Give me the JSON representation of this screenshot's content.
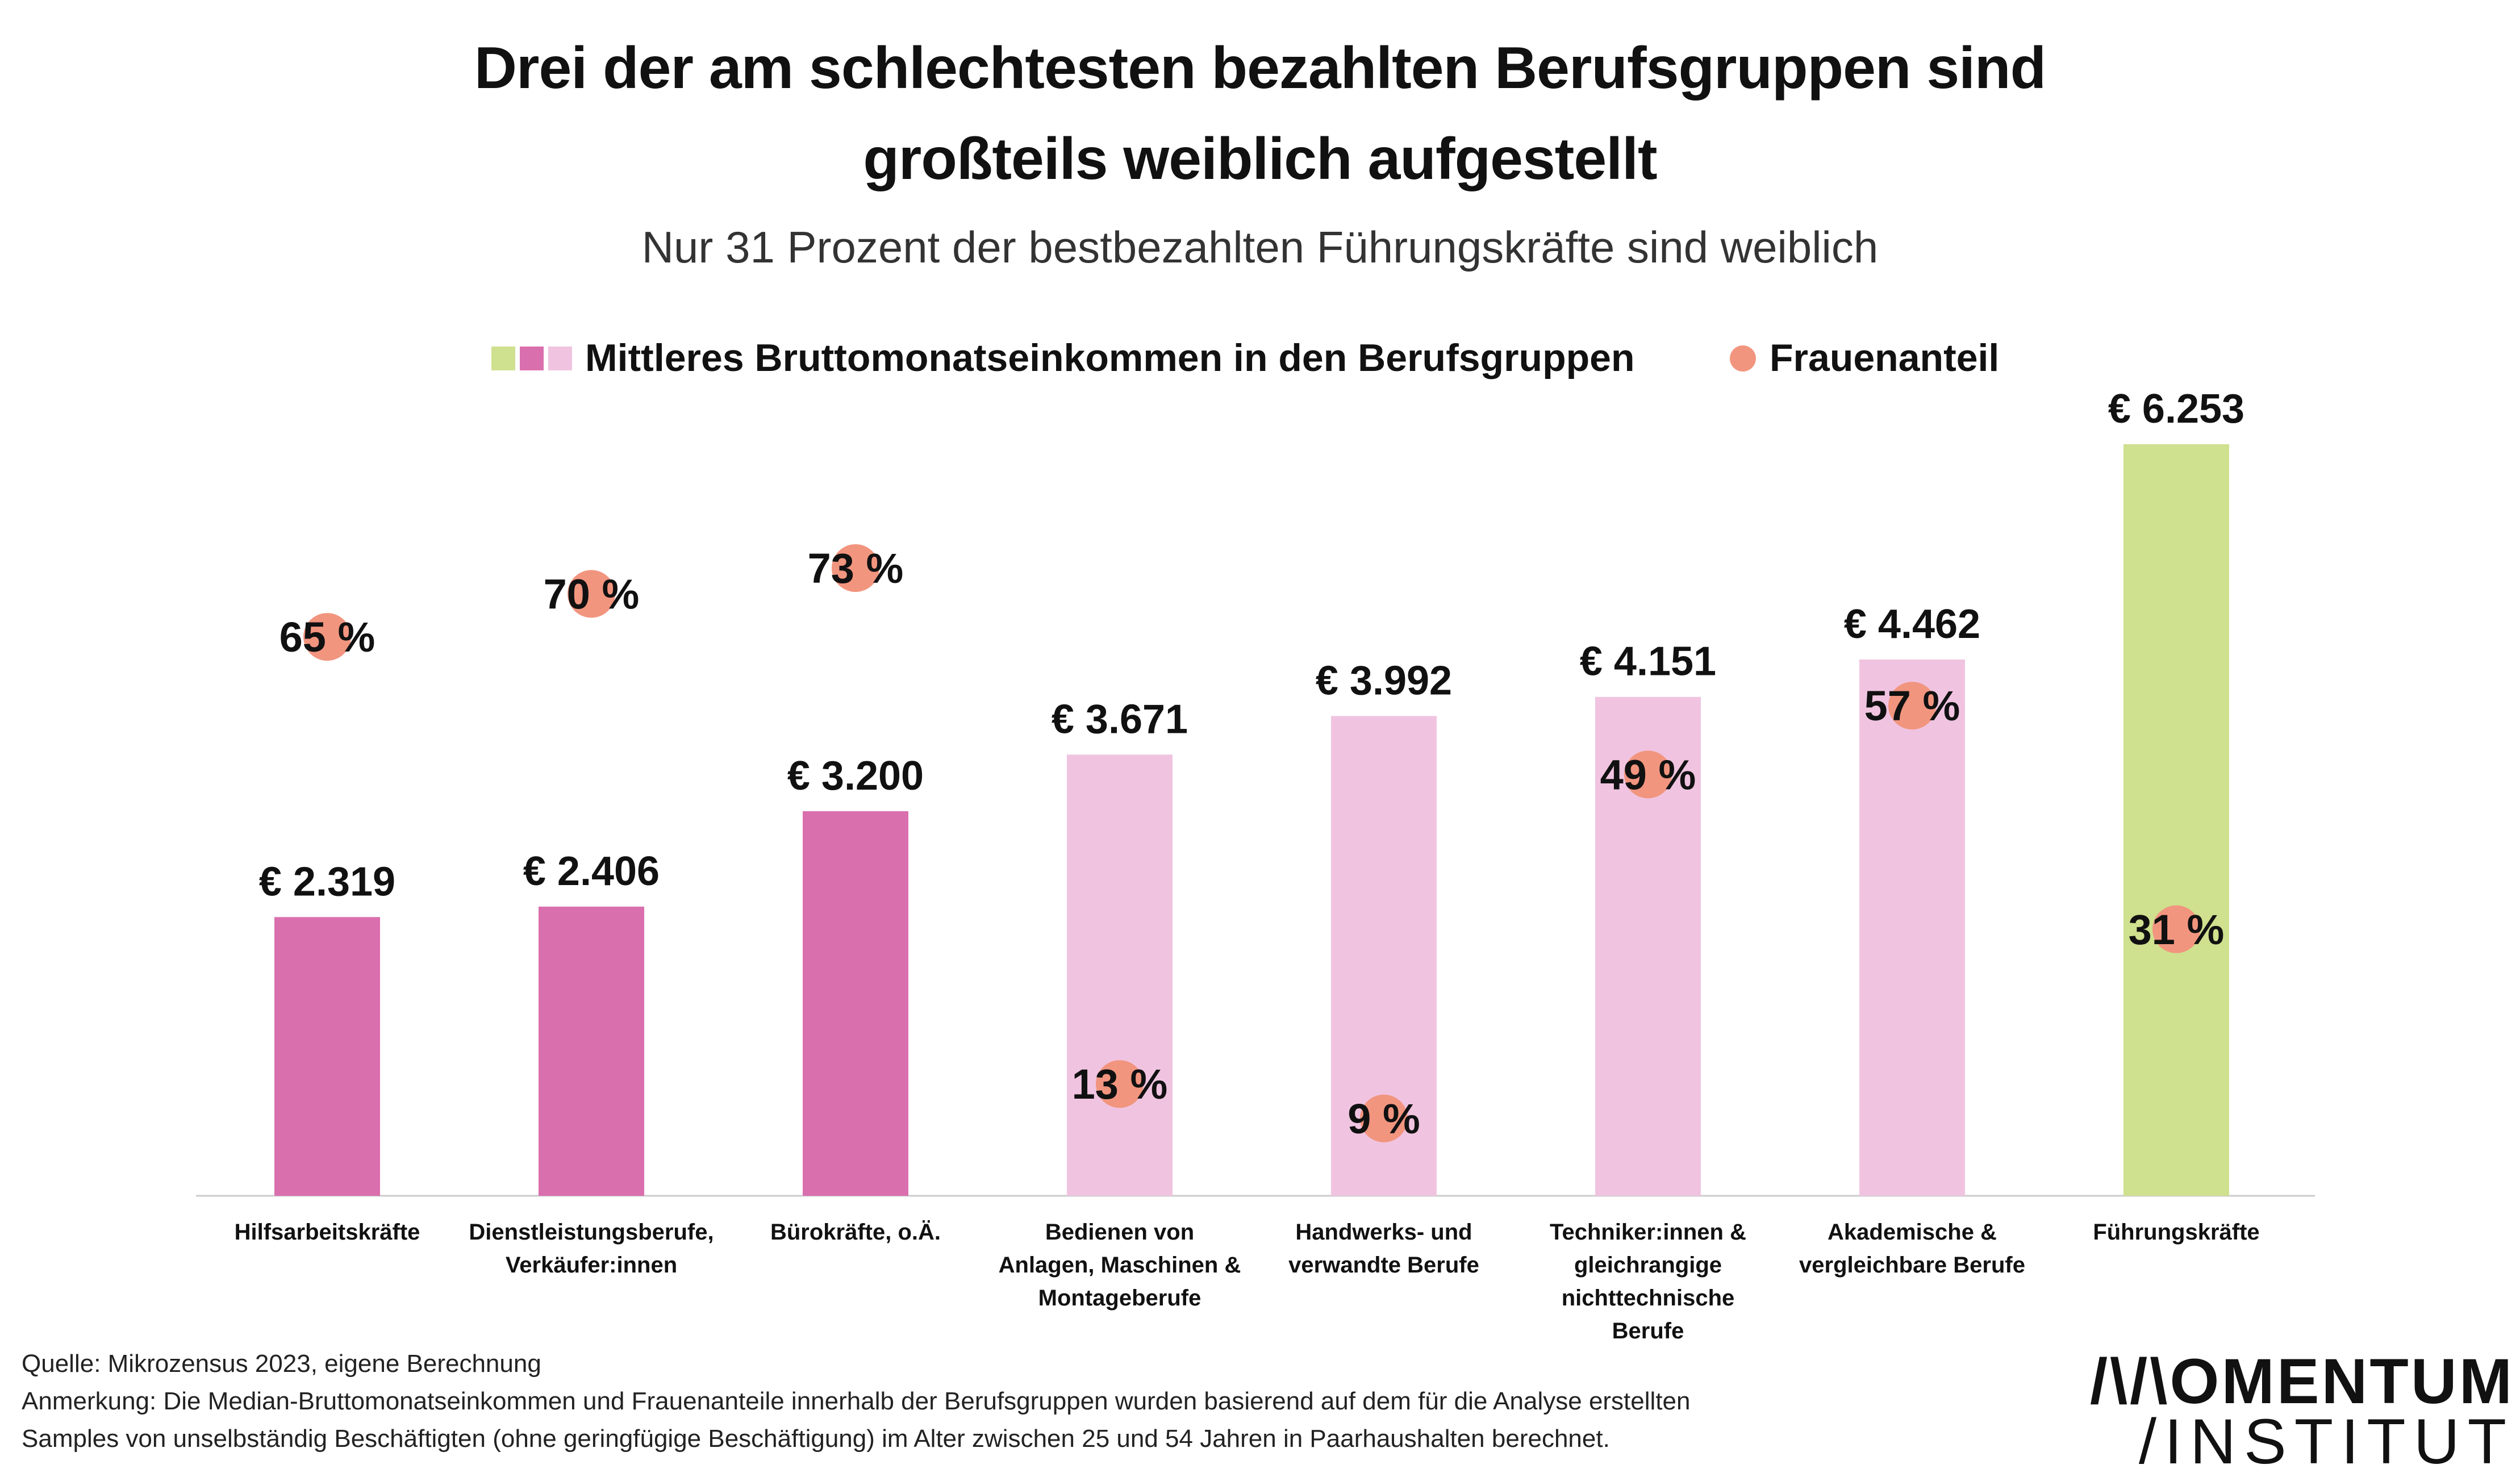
{
  "chart_data": {
    "type": "bar",
    "title": "Drei der am schlechtesten bezahlten Berufsgruppen sind großteils weiblich aufgestellt",
    "title_lines": [
      "Drei der am schlechtesten bezahlten Berufsgruppen sind",
      "großteils weiblich aufgestellt"
    ],
    "subtitle": "Nur 31 Prozent der bestbezahlten Führungskräfte sind weiblich",
    "legend": {
      "bars_label": "Mittleres Bruttomonatseinkommen in den Berufsgruppen",
      "dots_label": "Frauenanteil",
      "placement": "top"
    },
    "ylim": [
      0,
      6600
    ],
    "categories": [
      [
        "Hilfsarbeitskräfte"
      ],
      [
        "Dienstleistungsberufe,",
        "Verkäufer:innen"
      ],
      [
        "Bürokräfte, o.Ä."
      ],
      [
        "Bedienen von",
        "Anlagen, Maschinen &",
        "Montageberufe"
      ],
      [
        "Handwerks- und",
        "verwandte Berufe"
      ],
      [
        "Techniker:innen &",
        "gleichrangige",
        "nichttechnische",
        "Berufe"
      ],
      [
        "Akademische &",
        "vergleichbare Berufe"
      ],
      [
        "Führungskräfte"
      ]
    ],
    "series": [
      {
        "name": "Mittleres Bruttomonatseinkommen in den Berufsgruppen",
        "unit": "€",
        "values": [
          2319,
          2406,
          3200,
          3671,
          3992,
          4151,
          4462,
          6253
        ],
        "labels": [
          "€ 2.319",
          "€ 2.406",
          "€ 3.200",
          "€ 3.671",
          "€ 3.992",
          "€ 4.151",
          "€ 4.462",
          "€ 6.253"
        ]
      },
      {
        "name": "Frauenanteil",
        "unit": "%",
        "values": [
          65,
          70,
          73,
          13,
          9,
          49,
          57,
          31
        ],
        "labels": [
          "65 %",
          "70 %",
          "73 %",
          "13 %",
          "9 %",
          "49 %",
          "57 %",
          "31 %"
        ]
      }
    ],
    "colors": {
      "bar_dark": "#da6fae",
      "bar_light": "#f0c4e0",
      "bar_green": "#cfe08e",
      "dot": "#f2957f",
      "axis": "#cccccc"
    },
    "bar_color_keys": [
      "bar_dark",
      "bar_dark",
      "bar_dark",
      "bar_light",
      "bar_light",
      "bar_light",
      "bar_light",
      "bar_green"
    ]
  },
  "footer": {
    "source": "Quelle: Mikrozensus 2023, eigene Berechnung",
    "note_line1": "Anmerkung: Die Median-Bruttomonatseinkommen und Frauenanteile innerhalb der Berufsgruppen wurden basierend auf dem für die Analyse erstellten",
    "note_line2": "Samples von unselbständig Beschäftigten (ohne geringfügige Beschäftigung) im Alter zwischen 25 und 54 Jahren in Paarhaushalten berechnet."
  },
  "logo": {
    "line1": "/\\/\\OMENTUM",
    "line2": "/INSTITUT"
  }
}
